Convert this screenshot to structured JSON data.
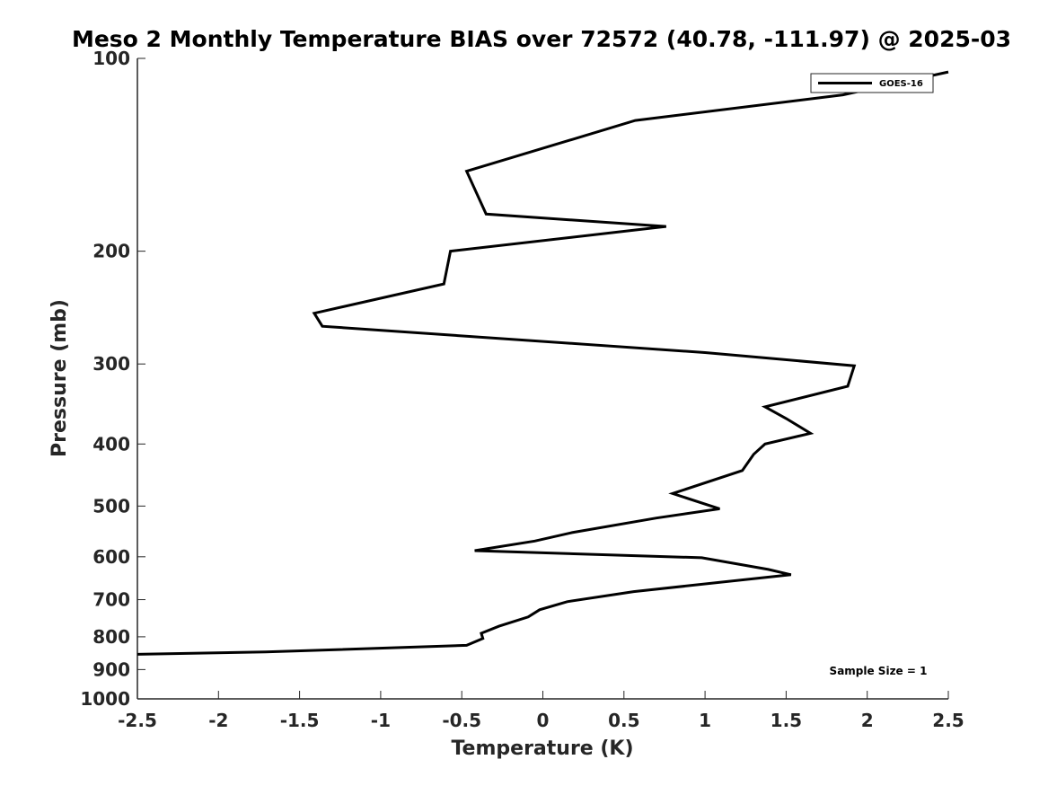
{
  "chart_data": {
    "type": "line",
    "title": "Meso 2 Monthly Temperature BIAS over 72572 (40.78, -111.97) @ 2025-03",
    "xlabel": "Temperature (K)",
    "ylabel": "Pressure (mb)",
    "xlim": [
      -2.5,
      2.5
    ],
    "ylim": [
      100,
      1000
    ],
    "y_scale": "log",
    "y_reversed": true,
    "x_ticks": [
      -2.5,
      -2,
      -1.5,
      -1,
      -0.5,
      0,
      0.5,
      1,
      1.5,
      2,
      2.5
    ],
    "x_tick_labels": [
      "-2.5",
      "-2",
      "-1.5",
      "-1",
      "-0.5",
      "0",
      "0.5",
      "1",
      "1.5",
      "2",
      "2.5"
    ],
    "y_ticks": [
      100,
      200,
      300,
      400,
      500,
      600,
      700,
      800,
      900,
      1000
    ],
    "y_tick_labels": [
      "100",
      "200",
      "300",
      "400",
      "500",
      "600",
      "700",
      "800",
      "900",
      "1000"
    ],
    "grid": false,
    "legend_position": "top-right",
    "color": "#000000",
    "series": [
      {
        "name": "GOES-16",
        "x": [
          2.5,
          1.85,
          0.57,
          -0.47,
          -0.35,
          0.76,
          -0.57,
          -0.61,
          -1.41,
          -1.36,
          1.0,
          1.92,
          1.88,
          1.37,
          1.5,
          1.65,
          1.37,
          1.3,
          1.23,
          0.8,
          1.09,
          0.7,
          0.18,
          -0.05,
          -0.42,
          0.98,
          1.39,
          1.53,
          0.56,
          0.15,
          -0.02,
          -0.09,
          -0.27,
          -0.38,
          -0.37,
          -0.47,
          -1.71,
          -2.5
        ],
        "y": [
          105,
          114,
          125,
          150,
          175,
          183,
          200,
          225,
          250,
          262,
          288,
          302,
          325,
          350,
          365,
          385,
          400,
          415,
          440,
          478,
          505,
          522,
          550,
          567,
          587,
          602,
          628,
          640,
          680,
          705,
          726,
          745,
          770,
          790,
          805,
          825,
          845,
          852
        ]
      }
    ],
    "annotations": [
      "Sample Size = 1"
    ]
  }
}
